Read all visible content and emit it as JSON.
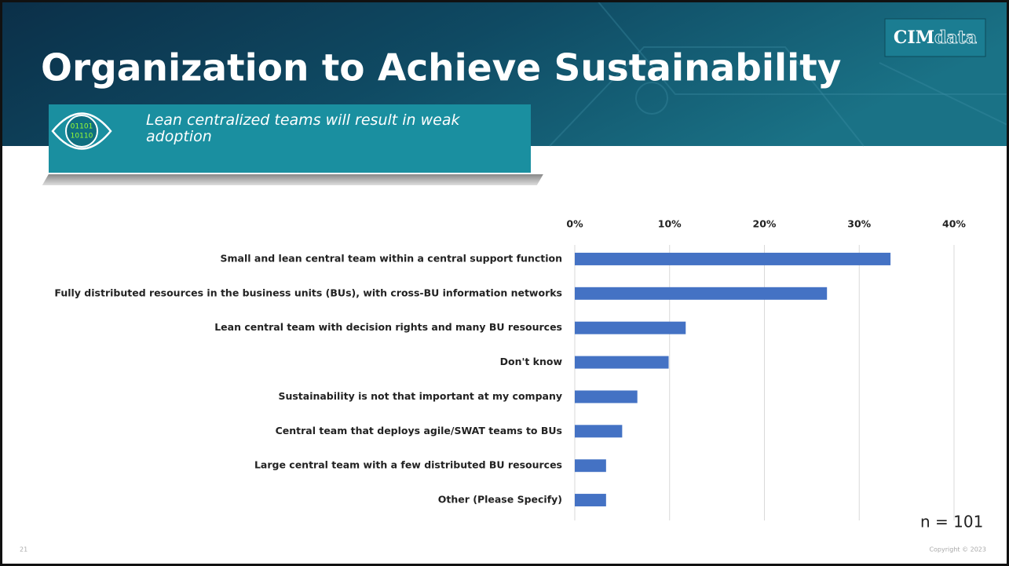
{
  "header": {
    "title": "Organization to Achieve Sustainability",
    "logo": {
      "brand": "CIM",
      "suffix": "data"
    }
  },
  "callout": {
    "icon_lines": [
      "01101",
      "10110"
    ],
    "text": "Lean centralized teams will result in weak adoption"
  },
  "chart_data": {
    "type": "bar",
    "orientation": "horizontal",
    "color": "#4472c4",
    "grid": true,
    "categories": [
      "Small and lean central team within a central support function",
      "Fully distributed resources in the business units (BUs), with cross-BU information networks",
      "Lean central team with decision rights and many BU resources",
      "Don't know",
      "Sustainability is not that important at my company",
      "Central team that deploys agile/SWAT teams to BUs",
      "Large central team with a few distributed BU resources",
      "Other (Please Specify)"
    ],
    "values": [
      33.3,
      26.6,
      11.7,
      9.9,
      6.6,
      5.0,
      3.3,
      3.3
    ],
    "xlim": [
      0,
      40
    ],
    "xticks": [
      {
        "value": 0,
        "label": "0%"
      },
      {
        "value": 10,
        "label": "10%"
      },
      {
        "value": 20,
        "label": "20%"
      },
      {
        "value": 30,
        "label": "30%"
      },
      {
        "value": 40,
        "label": "40%"
      }
    ],
    "annotation": "n = 101"
  },
  "footer": {
    "page": "21",
    "copyright": "Copyright © 2023"
  }
}
